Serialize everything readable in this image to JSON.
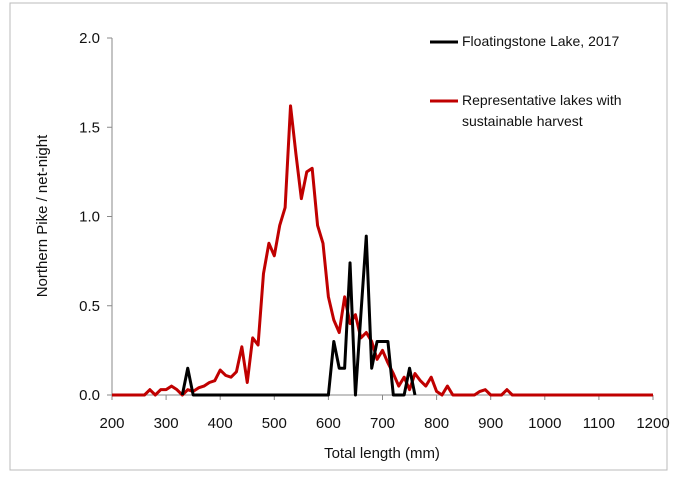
{
  "chart_data": {
    "type": "line",
    "xlabel": "Total length (mm)",
    "ylabel": "Northern Pike / net-night",
    "xlim": [
      200,
      1200
    ],
    "xticks": [
      200,
      300,
      400,
      500,
      600,
      700,
      800,
      900,
      1000,
      1100,
      1200
    ],
    "ylim": [
      0,
      2
    ],
    "yticks": [
      {
        "value": 0,
        "label": "0.0"
      },
      {
        "value": 0.5,
        "label": "0.5"
      },
      {
        "value": 1,
        "label": "1.0"
      },
      {
        "value": 1.5,
        "label": "1.5"
      },
      {
        "value": 2,
        "label": "2.0"
      }
    ],
    "legend": "top-right",
    "series": [
      {
        "name": "Floatingstone Lake, 2017",
        "color": "#000000",
        "x": [
          330,
          340,
          350,
          600,
          610,
          620,
          630,
          640,
          650,
          660,
          670,
          680,
          690,
          700,
          710,
          720,
          740,
          750,
          760
        ],
        "values": [
          0,
          0.15,
          0,
          0,
          0.3,
          0.15,
          0.15,
          0.74,
          0,
          0.45,
          0.89,
          0.15,
          0.3,
          0.3,
          0.3,
          0,
          0,
          0.15,
          0
        ]
      },
      {
        "name": "Representative lakes with sustainable harvest",
        "color": "#c00000",
        "x": [
          200,
          260,
          270,
          280,
          290,
          300,
          310,
          320,
          330,
          340,
          350,
          360,
          370,
          380,
          390,
          400,
          410,
          420,
          430,
          440,
          450,
          460,
          470,
          480,
          490,
          500,
          510,
          520,
          530,
          540,
          550,
          560,
          570,
          580,
          590,
          600,
          610,
          620,
          630,
          640,
          650,
          660,
          670,
          680,
          690,
          700,
          710,
          720,
          730,
          740,
          750,
          760,
          770,
          780,
          790,
          800,
          810,
          820,
          830,
          840,
          850,
          860,
          870,
          880,
          890,
          900,
          910,
          920,
          930,
          940,
          950,
          1200
        ],
        "values": [
          0,
          0,
          0.03,
          0,
          0.03,
          0.03,
          0.05,
          0.03,
          0,
          0.03,
          0.02,
          0.04,
          0.05,
          0.07,
          0.08,
          0.14,
          0.11,
          0.1,
          0.13,
          0.27,
          0.07,
          0.32,
          0.28,
          0.68,
          0.85,
          0.78,
          0.95,
          1.05,
          1.62,
          1.35,
          1.1,
          1.25,
          1.27,
          0.95,
          0.85,
          0.55,
          0.42,
          0.35,
          0.55,
          0.4,
          0.45,
          0.32,
          0.35,
          0.3,
          0.2,
          0.25,
          0.18,
          0.12,
          0.05,
          0.1,
          0.03,
          0.12,
          0.08,
          0.05,
          0.1,
          0.02,
          0,
          0.05,
          0,
          0,
          0,
          0,
          0,
          0.02,
          0.03,
          0,
          0,
          0,
          0.03,
          0,
          0,
          0
        ]
      }
    ]
  }
}
